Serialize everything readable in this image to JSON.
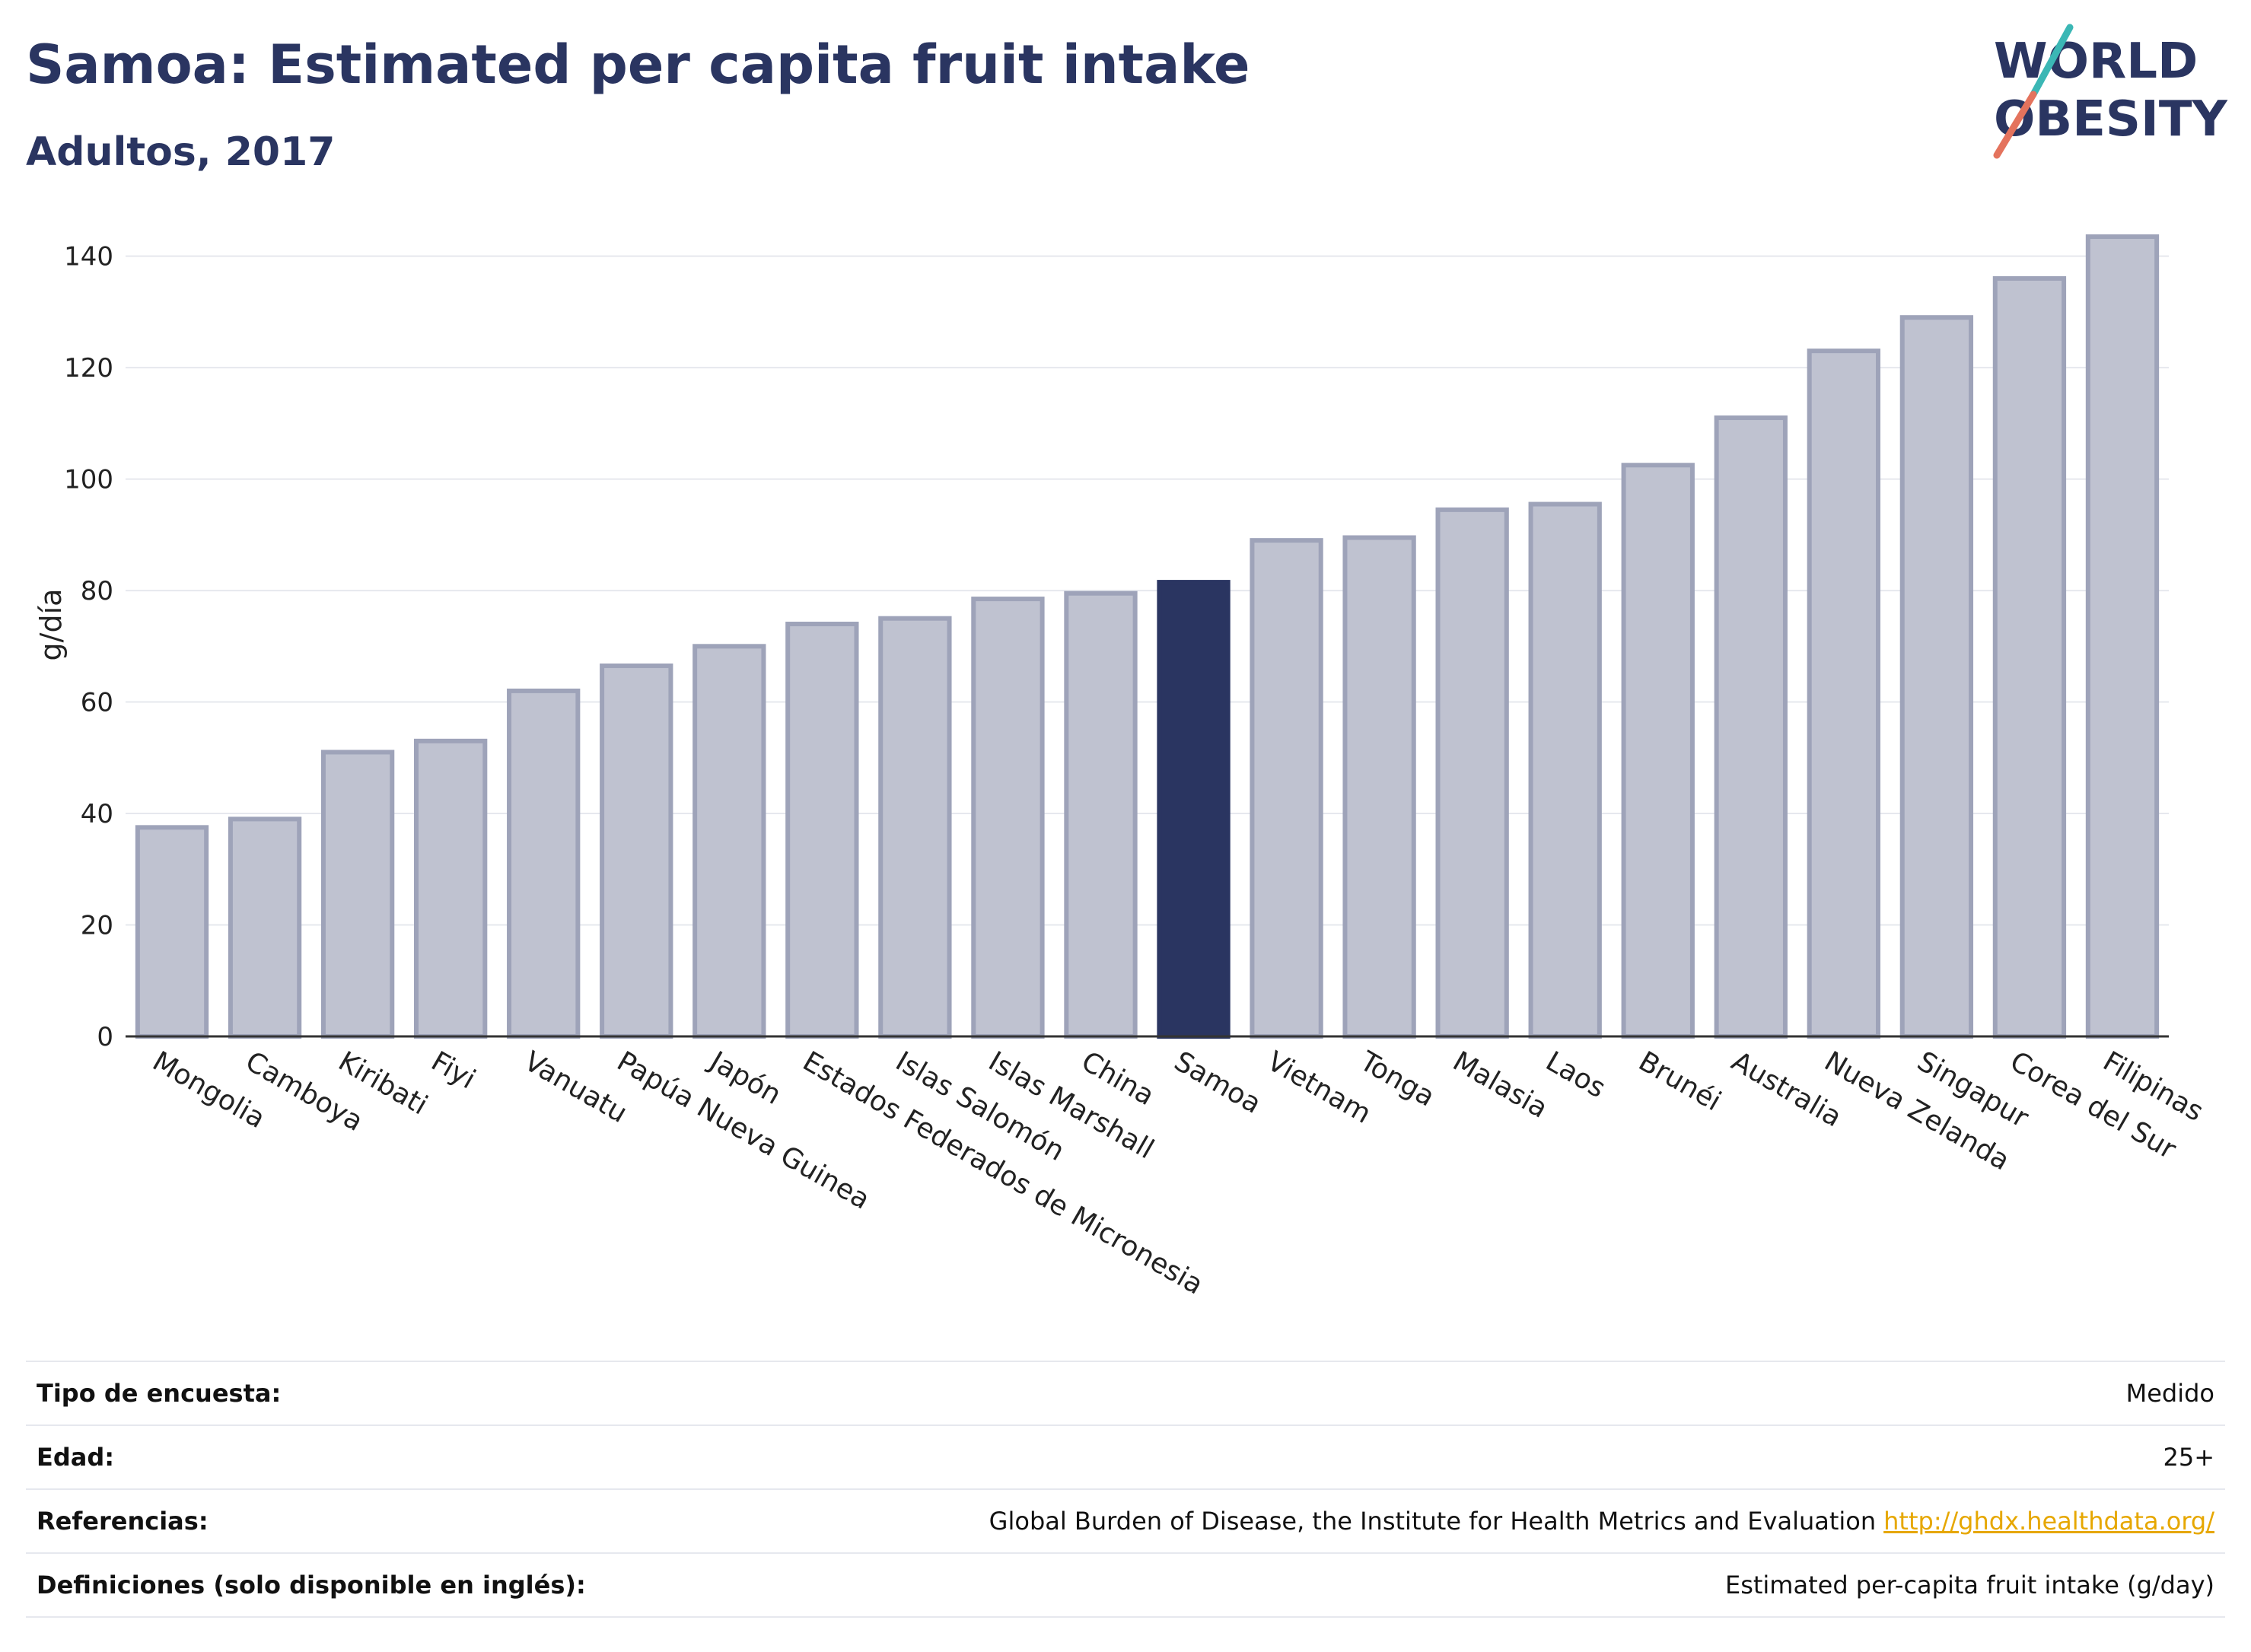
{
  "header": {
    "title": "Samoa: Estimated per capita fruit intake",
    "subtitle": "Adultos, 2017"
  },
  "logo": {
    "line1": "WORLD",
    "line2": "OBESITY",
    "text_color": "#2a3561",
    "slash_color_top": "#3bb7b5",
    "slash_color_bottom": "#e4735d"
  },
  "colors": {
    "bar_default": "#bfc2d0",
    "bar_border": "#9ea3b9",
    "bar_highlight": "#2a3561",
    "grid": "#e6e8ee"
  },
  "chart_data": {
    "type": "bar",
    "title": "Samoa: Estimated per capita fruit intake",
    "subtitle": "Adultos, 2017",
    "xlabel": "",
    "ylabel": "g/día",
    "ylim": [
      0,
      145
    ],
    "yticks": [
      0,
      20,
      40,
      60,
      80,
      100,
      120,
      140
    ],
    "grid": true,
    "highlight": "Samoa",
    "categories": [
      "Mongolia",
      "Camboya",
      "Kiribati",
      "Fiyi",
      "Vanuatu",
      "Papúa Nueva Guinea",
      "Japón",
      "Estados Federados de Micronesia",
      "Islas Salomón",
      "Islas Marshall",
      "China",
      "Samoa",
      "Vietnam",
      "Tonga",
      "Malasia",
      "Laos",
      "Brunéi",
      "Australia",
      "Nueva Zelanda",
      "Singapur",
      "Corea del Sur",
      "Filipinas"
    ],
    "values": [
      37.5,
      39,
      51,
      53,
      62,
      66.5,
      70,
      74,
      75,
      78.5,
      79.5,
      81.5,
      89,
      89.5,
      94.5,
      95.5,
      102.5,
      111,
      123,
      129,
      136,
      143.5
    ]
  },
  "info": [
    {
      "key": "Tipo de encuesta:",
      "value": "Medido",
      "link": ""
    },
    {
      "key": "Edad:",
      "value": "25+",
      "link": ""
    },
    {
      "key": "Referencias:",
      "value": "Global Burden of Disease, the Institute for Health Metrics and Evaluation",
      "link": "http://ghdx.healthdata.org/"
    },
    {
      "key": "Definiciones (solo disponible en inglés):",
      "value": "Estimated per-capita fruit intake (g/day)",
      "link": ""
    }
  ]
}
